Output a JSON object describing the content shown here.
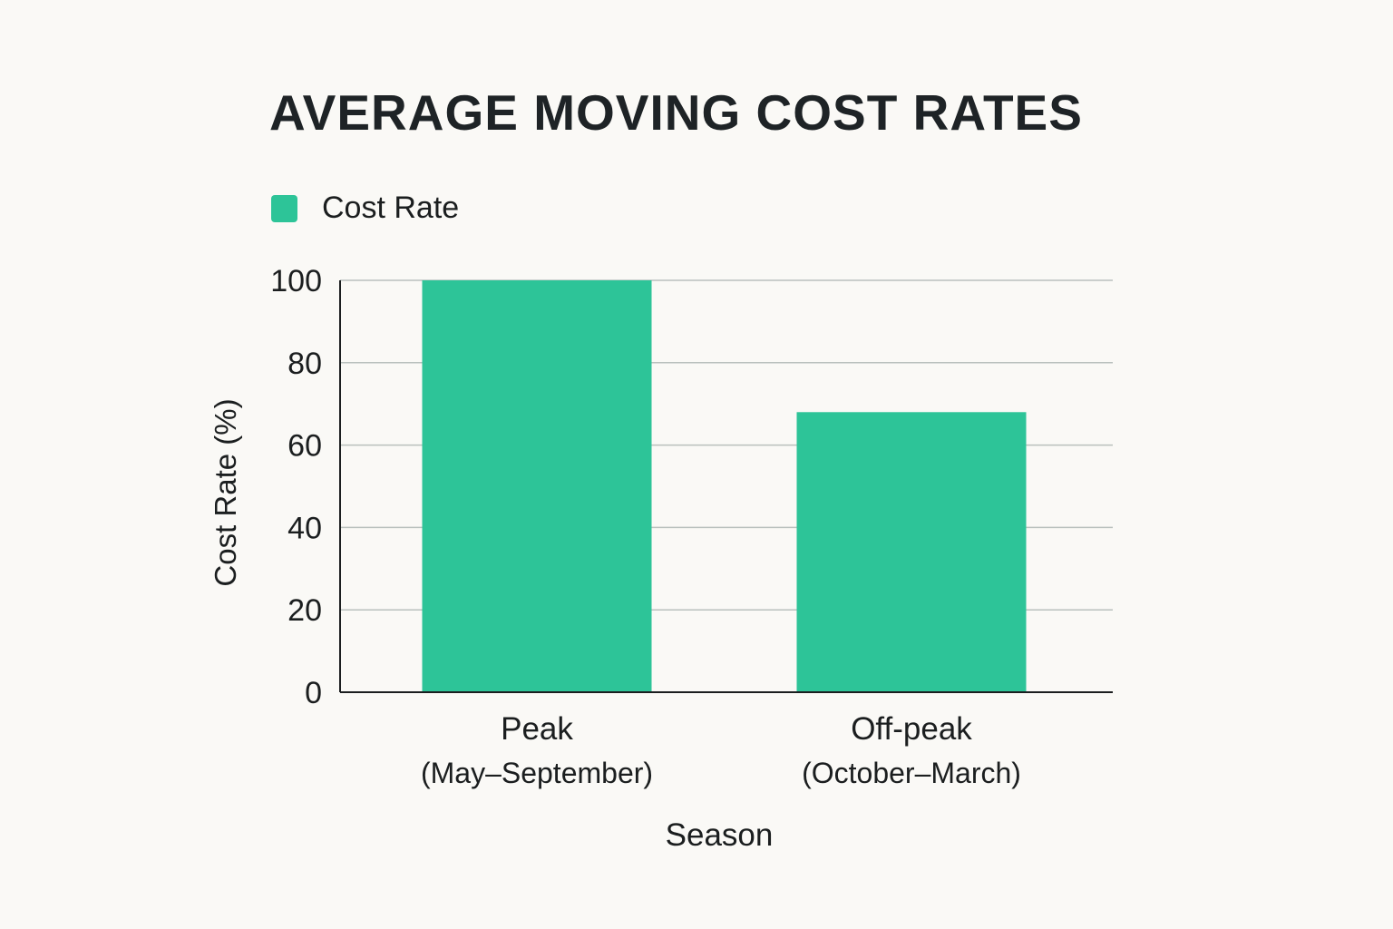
{
  "chart_data": {
    "type": "bar",
    "title": "AVERAGE MOVING COST RATES",
    "legend": {
      "entries": [
        "Cost Rate"
      ],
      "placement": "top-left"
    },
    "categories": [
      {
        "label": "Peak",
        "sublabel": "(May–September)"
      },
      {
        "label": "Off-peak",
        "sublabel": "(October–March)"
      }
    ],
    "series": [
      {
        "name": "Cost Rate",
        "values": [
          100,
          68
        ],
        "color": "#2dc498"
      }
    ],
    "xlabel": "Season",
    "ylabel": "Cost Rate (%)",
    "ylim": [
      0,
      100
    ],
    "yticks": [
      0,
      20,
      40,
      60,
      80,
      100
    ],
    "grid": true,
    "colors": {
      "bar": "#2dc498",
      "grid": "#b9c0bd",
      "axis": "#1b1e1f"
    }
  }
}
